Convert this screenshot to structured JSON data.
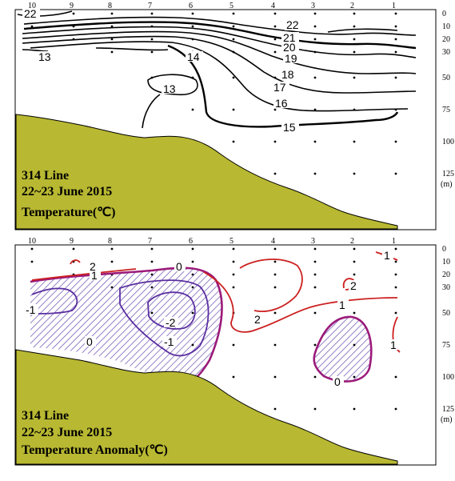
{
  "chart_data": [
    {
      "type": "contour",
      "station_labels": [
        "10",
        "9",
        "8",
        "7",
        "6",
        "5",
        "4",
        "3",
        "2",
        "1"
      ],
      "depth_labels": [
        "0",
        "10",
        "20",
        "30",
        "50",
        "75",
        "100",
        "125",
        "(m)"
      ],
      "depth_levels": [
        0,
        10,
        20,
        30,
        50,
        75,
        100,
        125
      ],
      "panel_text": [
        "314 Line",
        "22~23 June 2015",
        "Temperature(℃)"
      ],
      "contour_levels": [
        "22",
        "21",
        "20",
        "19",
        "18",
        "17",
        "16",
        "15",
        "14",
        "13",
        "22",
        "13"
      ],
      "colors": {
        "contour": "#000000",
        "seabed": "#b8b832"
      }
    },
    {
      "type": "contour",
      "station_labels": [
        "10",
        "9",
        "8",
        "7",
        "6",
        "5",
        "4",
        "3",
        "2",
        "1"
      ],
      "depth_labels": [
        "0",
        "10",
        "20",
        "30",
        "50",
        "75",
        "100",
        "125",
        "(m)"
      ],
      "depth_levels": [
        0,
        10,
        20,
        30,
        50,
        75,
        100,
        125
      ],
      "panel_text": [
        "314 Line",
        "22~23 June 2015",
        "Temperature Anomaly(℃)"
      ],
      "contour_levels": [
        "2",
        "1",
        "0",
        "-1",
        "-2",
        "-1",
        "0",
        "2",
        "1",
        "2",
        "1",
        "0",
        "1"
      ],
      "negative_region": "hatched",
      "colors": {
        "positive": "#cc1f1f",
        "zero": "#9b1a7a",
        "negative": "#5a2ea0",
        "hatch": "#7a62b8",
        "seabed": "#b8b832"
      }
    }
  ]
}
